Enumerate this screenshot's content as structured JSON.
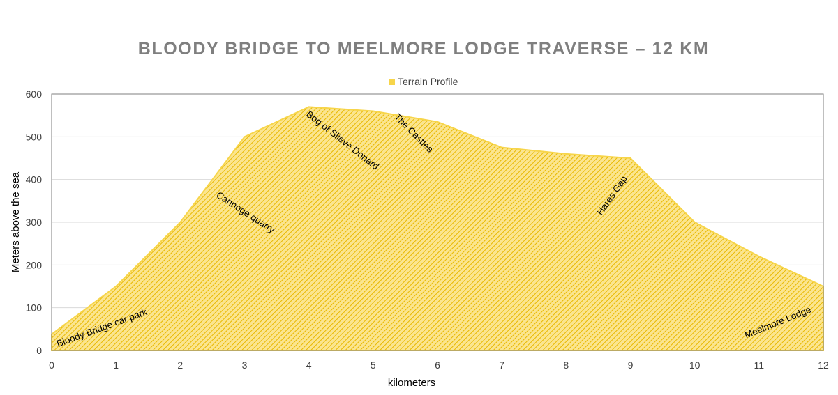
{
  "chart_data": {
    "type": "area",
    "title": "BLOODY BRIDGE TO MEELMORE LODGE TRAVERSE – 12 KM",
    "xlabel": "kilometers",
    "ylabel": "Meters above the sea",
    "xlim": [
      0,
      12
    ],
    "ylim": [
      0,
      600
    ],
    "x_ticks": [
      0,
      1,
      2,
      3,
      4,
      5,
      6,
      7,
      8,
      9,
      10,
      11,
      12
    ],
    "y_ticks": [
      0,
      100,
      200,
      300,
      400,
      500,
      600
    ],
    "grid": "horizontal",
    "legend_position": "top-center",
    "series": [
      {
        "name": "Terrain Profile",
        "x": [
          0,
          1,
          2,
          3,
          4,
          5,
          6,
          7,
          8,
          9,
          10,
          11,
          12
        ],
        "values": [
          38,
          150,
          300,
          500,
          570,
          560,
          535,
          475,
          460,
          450,
          300,
          220,
          150
        ]
      }
    ],
    "annotations": [
      {
        "text": "Bloody Bridge car park",
        "x": 0.1,
        "y": 8,
        "angle": -20
      },
      {
        "text": "Cannoge quarry",
        "x": 2.55,
        "y": 360,
        "angle": 33
      },
      {
        "text": "Bog of Slieve Donard",
        "x": 3.95,
        "y": 550,
        "angle": 38
      },
      {
        "text": "The Castles",
        "x": 5.32,
        "y": 545,
        "angle": 45
      },
      {
        "text": "Hares Gap",
        "x": 8.55,
        "y": 315,
        "angle": -55
      },
      {
        "text": "Meelmore Lodge",
        "x": 10.8,
        "y": 28,
        "angle": -22
      }
    ]
  },
  "colors": {
    "fill": "#f7d54a",
    "fill_light": "#fbe58f",
    "hatch": "#e8b800",
    "title": "#7f7f7f",
    "grid": "#d9d9d9",
    "plot_border": "#7f7f7f",
    "text": "#000000",
    "tick_text": "#404040"
  }
}
